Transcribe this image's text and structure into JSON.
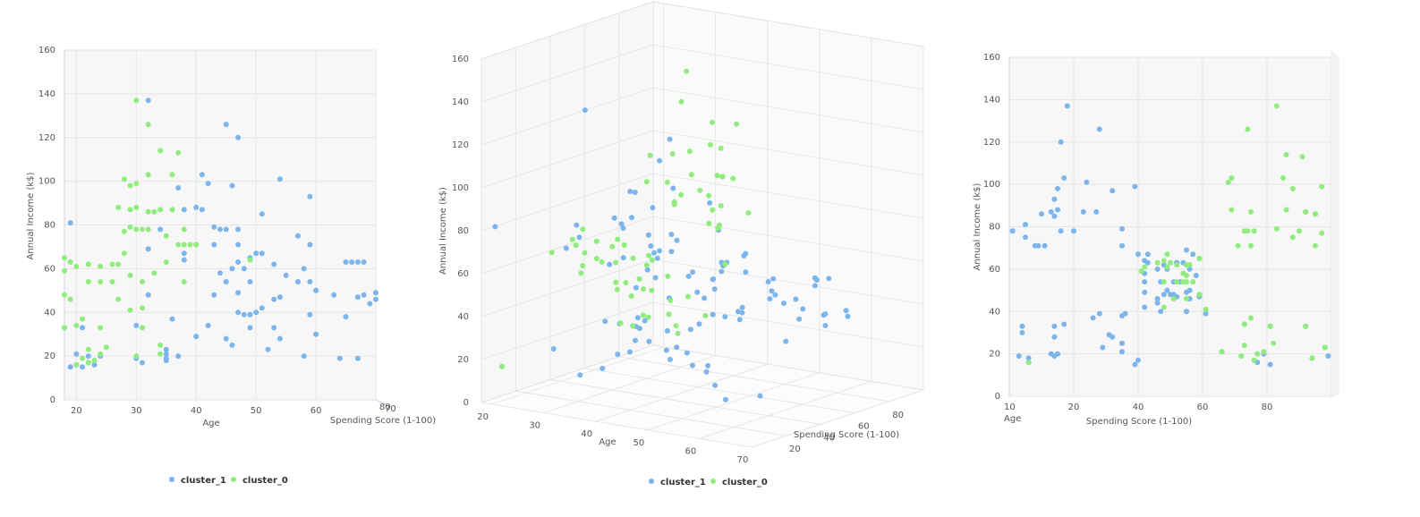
{
  "chart_data": [
    {
      "type": "scatter",
      "view": "front (age vs income)",
      "x_field": "age",
      "xlabel": "Age",
      "ylabel": "Annual Income (k$)",
      "zlabel": "Spending Score (1-100)",
      "x_ticks": [
        "20",
        "30",
        "40",
        "50",
        "60"
      ],
      "y_ticks": [
        "0",
        "20",
        "40",
        "60",
        "80",
        "100",
        "120",
        "140",
        "160"
      ],
      "z_ticks": [
        "80",
        "70"
      ],
      "xlim": [
        18,
        70
      ],
      "ylim": [
        0,
        160
      ],
      "grid": true,
      "legend_position": "bottom-center"
    },
    {
      "type": "scatter",
      "view": "3d perspective",
      "xlabel": "Age",
      "ylabel": "Annual Income (k$)",
      "zlabel": "Spending Score (1-100)",
      "x_ticks": [
        "20",
        "30",
        "40",
        "50",
        "60",
        "70"
      ],
      "y_ticks": [
        "0",
        "20",
        "40",
        "60",
        "80",
        "100",
        "120",
        "140",
        "160"
      ],
      "z_ticks": [
        "20",
        "40",
        "60",
        "80"
      ],
      "ylim": [
        0,
        160
      ],
      "grid": true,
      "legend_position": "bottom-center"
    },
    {
      "type": "scatter",
      "view": "side (spending score vs income)",
      "x_field": "score",
      "xlabel": "Spending Score (1-100)",
      "ylabel": "Annual Income (k$)",
      "zlabel": "Age",
      "x_ticks": [
        "20",
        "40",
        "60",
        "80"
      ],
      "y_ticks": [
        "0",
        "20",
        "40",
        "60",
        "80",
        "100",
        "120",
        "140",
        "160"
      ],
      "z_ticks": [
        "10"
      ],
      "xlim": [
        0,
        100
      ],
      "ylim": [
        0,
        160
      ],
      "grid": true,
      "legend_position": "none"
    }
  ],
  "legend": [
    {
      "name": "cluster_1",
      "color": "#7cb5ec"
    },
    {
      "name": "cluster_0",
      "color": "#90ed7d"
    }
  ],
  "series": [
    {
      "name": "cluster_1",
      "color": "#7cb5ec",
      "points": [
        {
          "age": 19,
          "income": 15,
          "score": 39
        },
        {
          "age": 21,
          "income": 15,
          "score": 81
        },
        {
          "age": 20,
          "income": 16,
          "score": 6
        },
        {
          "age": 23,
          "income": 16,
          "score": 77
        },
        {
          "age": 31,
          "income": 17,
          "score": 40
        },
        {
          "age": 22,
          "income": 17,
          "score": 76
        },
        {
          "age": 35,
          "income": 18,
          "score": 6
        },
        {
          "age": 23,
          "income": 18,
          "score": 94
        },
        {
          "age": 64,
          "income": 19,
          "score": 3
        },
        {
          "age": 30,
          "income": 19,
          "score": 72
        },
        {
          "age": 67,
          "income": 19,
          "score": 14
        },
        {
          "age": 35,
          "income": 19,
          "score": 99
        },
        {
          "age": 58,
          "income": 20,
          "score": 15
        },
        {
          "age": 24,
          "income": 20,
          "score": 77
        },
        {
          "age": 37,
          "income": 20,
          "score": 13
        },
        {
          "age": 22,
          "income": 20,
          "score": 79
        },
        {
          "age": 35,
          "income": 21,
          "score": 35
        },
        {
          "age": 20,
          "income": 21,
          "score": 66
        },
        {
          "age": 52,
          "income": 23,
          "score": 29
        },
        {
          "age": 35,
          "income": 23,
          "score": 98
        },
        {
          "age": 46,
          "income": 25,
          "score": 35
        },
        {
          "age": 54,
          "income": 28,
          "score": 14
        },
        {
          "age": 45,
          "income": 28,
          "score": 32
        },
        {
          "age": 40,
          "income": 29,
          "score": 31
        },
        {
          "age": 60,
          "income": 30,
          "score": 4
        },
        {
          "age": 53,
          "income": 33,
          "score": 4
        },
        {
          "age": 18,
          "income": 33,
          "score": 92
        },
        {
          "age": 49,
          "income": 33,
          "score": 14
        },
        {
          "age": 21,
          "income": 33,
          "score": 81
        },
        {
          "age": 42,
          "income": 34,
          "score": 17
        },
        {
          "age": 30,
          "income": 34,
          "score": 73
        },
        {
          "age": 36,
          "income": 37,
          "score": 26
        },
        {
          "age": 65,
          "income": 38,
          "score": 35
        },
        {
          "age": 48,
          "income": 39,
          "score": 36
        },
        {
          "age": 49,
          "income": 39,
          "score": 28
        },
        {
          "age": 59,
          "income": 39,
          "score": 61
        },
        {
          "age": 50,
          "income": 40,
          "score": 55
        },
        {
          "age": 47,
          "income": 40,
          "score": 47
        },
        {
          "age": 51,
          "income": 42,
          "score": 42
        },
        {
          "age": 69,
          "income": 44,
          "score": 46
        },
        {
          "age": 53,
          "income": 46,
          "score": 46
        },
        {
          "age": 70,
          "income": 46,
          "score": 56
        },
        {
          "age": 67,
          "income": 47,
          "score": 52
        },
        {
          "age": 54,
          "income": 47,
          "score": 59
        },
        {
          "age": 63,
          "income": 48,
          "score": 51
        },
        {
          "age": 43,
          "income": 48,
          "score": 50
        },
        {
          "age": 68,
          "income": 48,
          "score": 48
        },
        {
          "age": 32,
          "income": 48,
          "score": 59
        },
        {
          "age": 70,
          "income": 49,
          "score": 55
        },
        {
          "age": 47,
          "income": 49,
          "score": 42
        },
        {
          "age": 60,
          "income": 50,
          "score": 49
        },
        {
          "age": 60,
          "income": 50,
          "score": 56
        },
        {
          "age": 59,
          "income": 54,
          "score": 47
        },
        {
          "age": 45,
          "income": 54,
          "score": 53
        },
        {
          "age": 49,
          "income": 54,
          "score": 42
        },
        {
          "age": 57,
          "income": 54,
          "score": 51
        },
        {
          "age": 58,
          "income": 60,
          "score": 46
        },
        {
          "age": 48,
          "income": 60,
          "score": 49
        },
        {
          "age": 46,
          "income": 60,
          "score": 56
        },
        {
          "age": 55,
          "income": 57,
          "score": 58
        },
        {
          "age": 44,
          "income": 58,
          "score": 42
        },
        {
          "age": 38,
          "income": 64,
          "score": 42
        },
        {
          "age": 47,
          "income": 63,
          "score": 52
        },
        {
          "age": 67,
          "income": 63,
          "score": 54
        },
        {
          "age": 68,
          "income": 63,
          "score": 43
        },
        {
          "age": 50,
          "income": 67,
          "score": 57
        },
        {
          "age": 49,
          "income": 65,
          "score": 59
        },
        {
          "age": 51,
          "income": 67,
          "score": 43
        },
        {
          "age": 38,
          "income": 67,
          "score": 40
        },
        {
          "age": 53,
          "income": 62,
          "score": 48
        },
        {
          "age": 65,
          "income": 63,
          "score": 52
        },
        {
          "age": 66,
          "income": 63,
          "score": 50
        },
        {
          "age": 19,
          "income": 63,
          "score": 54
        },
        {
          "age": 32,
          "income": 69,
          "score": 55
        },
        {
          "age": 40,
          "income": 71,
          "score": 8
        },
        {
          "age": 43,
          "income": 71,
          "score": 35
        },
        {
          "age": 57,
          "income": 75,
          "score": 5
        },
        {
          "age": 47,
          "income": 71,
          "score": 9
        },
        {
          "age": 59,
          "income": 71,
          "score": 11
        },
        {
          "age": 34,
          "income": 78,
          "score": 1
        },
        {
          "age": 44,
          "income": 78,
          "score": 20
        },
        {
          "age": 47,
          "income": 78,
          "score": 16
        },
        {
          "age": 45,
          "income": 78,
          "score": 1
        },
        {
          "age": 43,
          "income": 79,
          "score": 35
        },
        {
          "age": 19,
          "income": 81,
          "score": 5
        },
        {
          "age": 38,
          "income": 87,
          "score": 27
        },
        {
          "age": 41,
          "income": 87,
          "score": 13
        },
        {
          "age": 33,
          "income": 86,
          "score": 10
        },
        {
          "age": 40,
          "income": 88,
          "score": 15
        },
        {
          "age": 51,
          "income": 85,
          "score": 14
        },
        {
          "age": 59,
          "income": 93,
          "score": 14
        },
        {
          "age": 37,
          "income": 97,
          "score": 32
        },
        {
          "age": 46,
          "income": 98,
          "score": 15
        },
        {
          "age": 54,
          "income": 101,
          "score": 24
        },
        {
          "age": 41,
          "income": 103,
          "score": 17
        },
        {
          "age": 42,
          "income": 99,
          "score": 39
        },
        {
          "age": 36,
          "income": 87,
          "score": 23
        },
        {
          "age": 47,
          "income": 120,
          "score": 16
        },
        {
          "age": 45,
          "income": 126,
          "score": 28
        },
        {
          "age": 32,
          "income": 137,
          "score": 18
        }
      ]
    },
    {
      "name": "cluster_0",
      "color": "#90ed7d",
      "points": [
        {
          "age": 20,
          "income": 16,
          "score": 6
        },
        {
          "age": 22,
          "income": 17,
          "score": 76
        },
        {
          "age": 23,
          "income": 18,
          "score": 94
        },
        {
          "age": 21,
          "income": 19,
          "score": 72
        },
        {
          "age": 30,
          "income": 20,
          "score": 77
        },
        {
          "age": 24,
          "income": 21,
          "score": 79
        },
        {
          "age": 34,
          "income": 21,
          "score": 66
        },
        {
          "age": 22,
          "income": 23,
          "score": 98
        },
        {
          "age": 25,
          "income": 24,
          "score": 73
        },
        {
          "age": 34,
          "income": 25,
          "score": 82
        },
        {
          "age": 18,
          "income": 33,
          "score": 92
        },
        {
          "age": 24,
          "income": 33,
          "score": 81
        },
        {
          "age": 20,
          "income": 34,
          "score": 73
        },
        {
          "age": 31,
          "income": 33,
          "score": 81
        },
        {
          "age": 21,
          "income": 37,
          "score": 75
        },
        {
          "age": 29,
          "income": 41,
          "score": 61
        },
        {
          "age": 31,
          "income": 42,
          "score": 48
        },
        {
          "age": 27,
          "income": 46,
          "score": 51
        },
        {
          "age": 19,
          "income": 46,
          "score": 55
        },
        {
          "age": 18,
          "income": 48,
          "score": 59
        },
        {
          "age": 22,
          "income": 54,
          "score": 55
        },
        {
          "age": 24,
          "income": 54,
          "score": 52
        },
        {
          "age": 26,
          "income": 54,
          "score": 54
        },
        {
          "age": 31,
          "income": 54,
          "score": 57
        },
        {
          "age": 38,
          "income": 54,
          "score": 48
        },
        {
          "age": 29,
          "income": 57,
          "score": 55
        },
        {
          "age": 33,
          "income": 58,
          "score": 54
        },
        {
          "age": 18,
          "income": 59,
          "score": 41
        },
        {
          "age": 20,
          "income": 61,
          "score": 49
        },
        {
          "age": 22,
          "income": 62,
          "score": 55
        },
        {
          "age": 27,
          "income": 62,
          "score": 56
        },
        {
          "age": 35,
          "income": 63,
          "score": 46
        },
        {
          "age": 18,
          "income": 65,
          "score": 59
        },
        {
          "age": 19,
          "income": 63,
          "score": 50
        },
        {
          "age": 26,
          "income": 62,
          "score": 52
        },
        {
          "age": 24,
          "income": 61,
          "score": 42
        },
        {
          "age": 49,
          "income": 64,
          "score": 48
        },
        {
          "age": 28,
          "income": 67,
          "score": 49
        },
        {
          "age": 38,
          "income": 71,
          "score": 95
        },
        {
          "age": 37,
          "income": 71,
          "score": 75
        },
        {
          "age": 39,
          "income": 71,
          "score": 75
        },
        {
          "age": 40,
          "income": 71,
          "score": 71
        },
        {
          "age": 35,
          "income": 75,
          "score": 88
        },
        {
          "age": 31,
          "income": 78,
          "score": 73
        },
        {
          "age": 38,
          "income": 78,
          "score": 74
        },
        {
          "age": 29,
          "income": 79,
          "score": 83
        },
        {
          "age": 32,
          "income": 78,
          "score": 90
        },
        {
          "age": 28,
          "income": 77,
          "score": 97
        },
        {
          "age": 30,
          "income": 78,
          "score": 76
        },
        {
          "age": 32,
          "income": 86,
          "score": 95
        },
        {
          "age": 29,
          "income": 87,
          "score": 75
        },
        {
          "age": 34,
          "income": 87,
          "score": 92
        },
        {
          "age": 27,
          "income": 88,
          "score": 69
        },
        {
          "age": 36,
          "income": 87,
          "score": 92
        },
        {
          "age": 33,
          "income": 86,
          "score": 95
        },
        {
          "age": 30,
          "income": 88,
          "score": 86
        },
        {
          "age": 29,
          "income": 98,
          "score": 88
        },
        {
          "age": 30,
          "income": 99,
          "score": 97
        },
        {
          "age": 32,
          "income": 103,
          "score": 69
        },
        {
          "age": 28,
          "income": 101,
          "score": 68
        },
        {
          "age": 36,
          "income": 103,
          "score": 85
        },
        {
          "age": 37,
          "income": 113,
          "score": 91
        },
        {
          "age": 32,
          "income": 126,
          "score": 74
        },
        {
          "age": 30,
          "income": 137,
          "score": 83
        },
        {
          "age": 34,
          "income": 114,
          "score": 86
        }
      ]
    }
  ]
}
